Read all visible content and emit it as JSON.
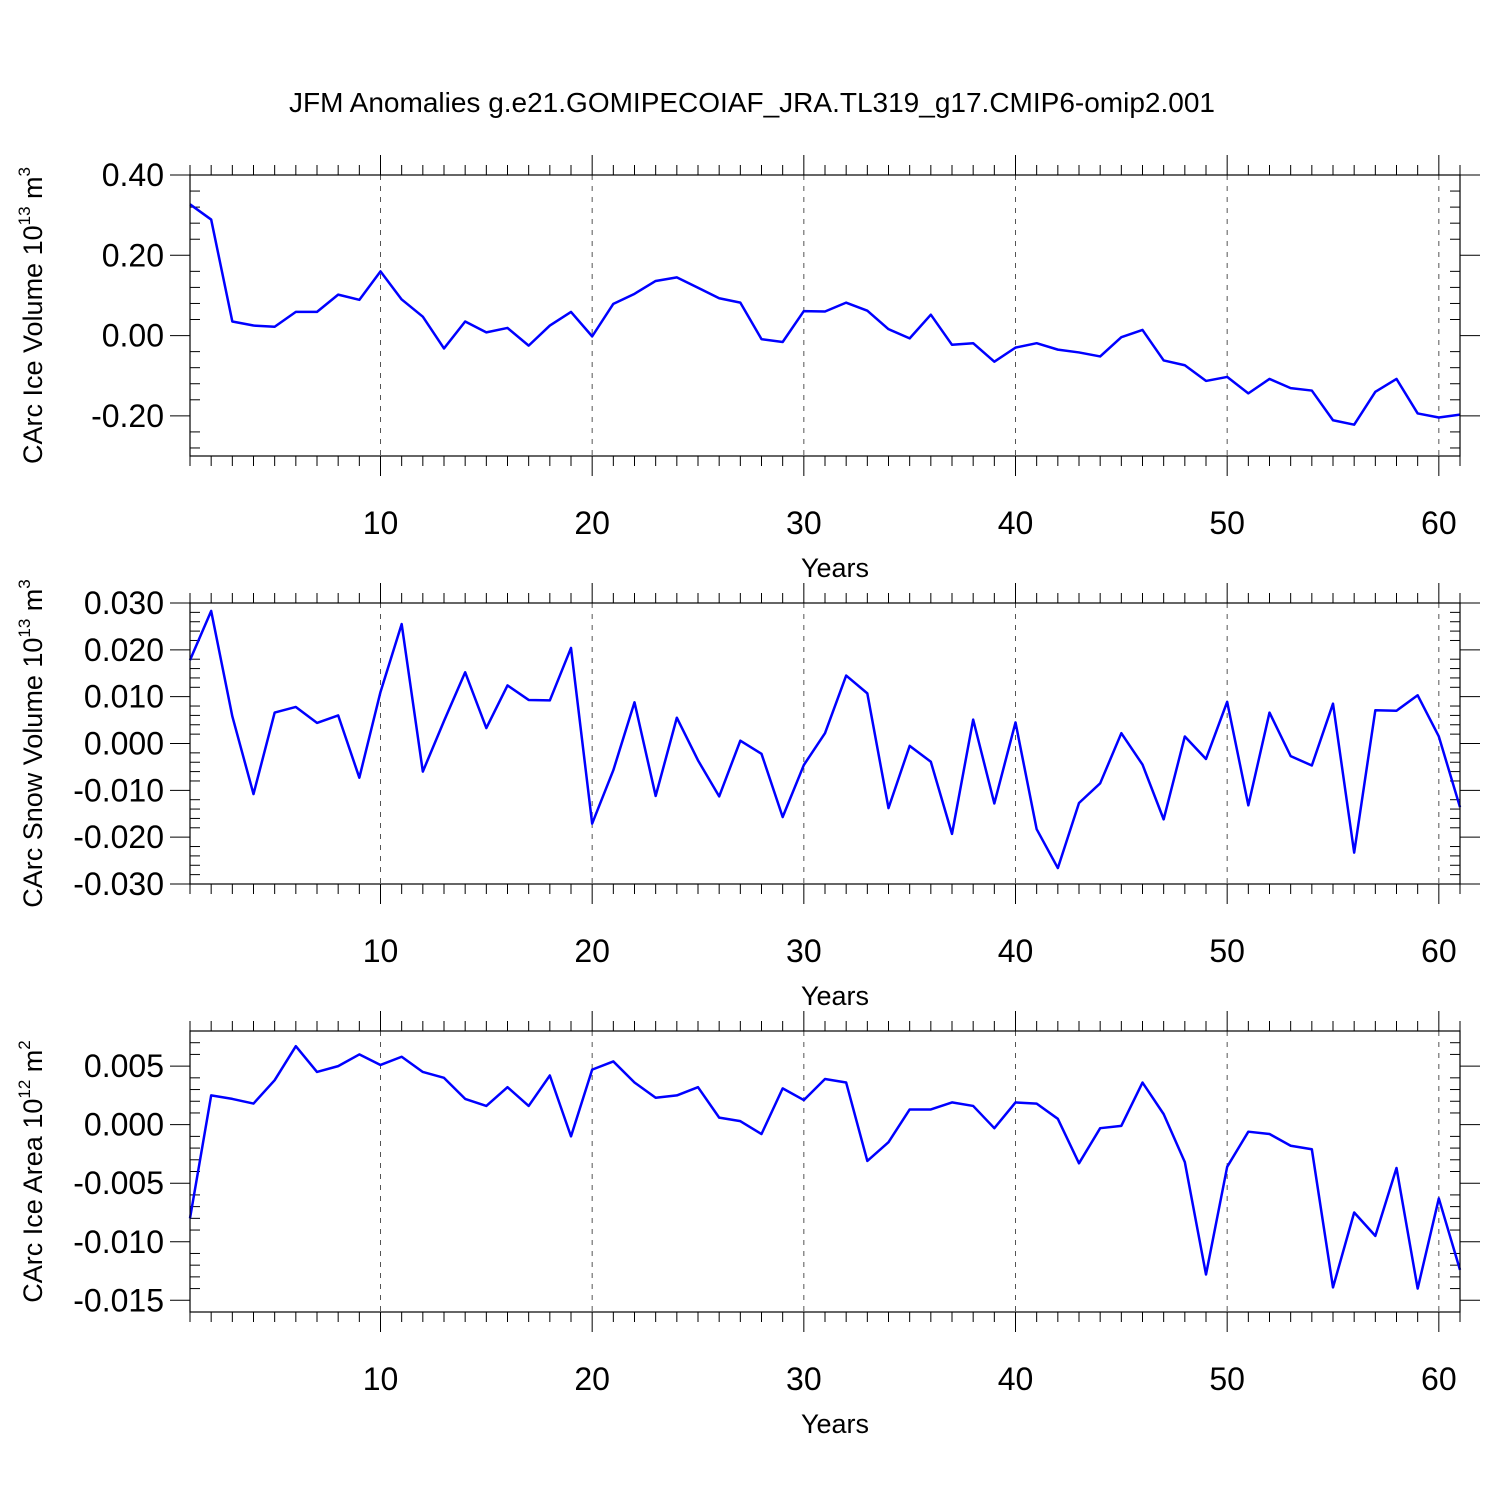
{
  "title": "JFM Anomalies g.e21.GOMIPECOIAF_JRA.TL319_g17.CMIP6-omip2.001",
  "colors": {
    "line": "#0000ff",
    "axis": "#000000",
    "grid": "#555555"
  },
  "chart_data": [
    {
      "type": "line",
      "xlabel": "Years",
      "ylabel_main": "CArc Ice Volume 10",
      "ylabel_exp": "13",
      "ylabel_tail": " m",
      "ylabel_unit_exp": "3",
      "xlim": [
        1,
        61
      ],
      "ylim": [
        -0.3,
        0.4
      ],
      "grid": "vertical dashed at x ticks",
      "x_ticks": [
        10,
        20,
        30,
        40,
        50,
        60
      ],
      "x_tick_labels": [
        "10",
        "20",
        "30",
        "40",
        "50",
        "60"
      ],
      "y_ticks": [
        0.4,
        0.2,
        0.0,
        -0.2
      ],
      "y_tick_labels": [
        "0.40",
        "0.20",
        "0.00",
        "-0.20"
      ],
      "x": [
        1,
        2,
        3,
        4,
        5,
        6,
        7,
        8,
        9,
        10,
        11,
        12,
        13,
        14,
        15,
        16,
        17,
        18,
        19,
        20,
        21,
        22,
        23,
        24,
        25,
        26,
        27,
        28,
        29,
        30,
        31,
        32,
        33,
        34,
        35,
        36,
        37,
        38,
        39,
        40,
        41,
        42,
        43,
        44,
        45,
        46,
        47,
        48,
        49,
        50,
        51,
        52,
        53,
        54,
        55,
        56,
        57,
        58,
        59,
        60,
        61
      ],
      "series": [
        {
          "values": [
            0.327,
            0.289,
            0.035,
            0.025,
            0.022,
            0.059,
            0.059,
            0.102,
            0.089,
            0.16,
            0.09,
            0.047,
            -0.032,
            0.035,
            0.008,
            0.019,
            -0.025,
            0.025,
            0.059,
            -0.002,
            0.079,
            0.104,
            0.136,
            0.145,
            0.119,
            0.093,
            0.082,
            -0.009,
            -0.016,
            0.061,
            0.06,
            0.082,
            0.062,
            0.016,
            -0.007,
            0.052,
            -0.023,
            -0.019,
            -0.065,
            -0.03,
            -0.019,
            -0.035,
            -0.042,
            -0.052,
            -0.004,
            0.014,
            -0.062,
            -0.074,
            -0.113,
            -0.103,
            -0.144,
            -0.108,
            -0.131,
            -0.137,
            -0.211,
            -0.222,
            -0.14,
            -0.108,
            -0.194,
            -0.204,
            -0.197
          ]
        }
      ]
    },
    {
      "type": "line",
      "xlabel": "Years",
      "ylabel_main": "CArc Snow Volume 10",
      "ylabel_exp": "13",
      "ylabel_tail": " m",
      "ylabel_unit_exp": "3",
      "xlim": [
        1,
        61
      ],
      "ylim": [
        -0.03,
        0.03
      ],
      "grid": "vertical dashed at x ticks",
      "x_ticks": [
        10,
        20,
        30,
        40,
        50,
        60
      ],
      "x_tick_labels": [
        "10",
        "20",
        "30",
        "40",
        "50",
        "60"
      ],
      "y_ticks": [
        0.03,
        0.02,
        0.01,
        0.0,
        -0.01,
        -0.02,
        -0.03
      ],
      "y_tick_labels": [
        "0.030",
        "0.020",
        "0.010",
        "0.000",
        "-0.010",
        "-0.020",
        "-0.030"
      ],
      "x": [
        1,
        2,
        3,
        4,
        5,
        6,
        7,
        8,
        9,
        10,
        11,
        12,
        13,
        14,
        15,
        16,
        17,
        18,
        19,
        20,
        21,
        22,
        23,
        24,
        25,
        26,
        27,
        28,
        29,
        30,
        31,
        32,
        33,
        34,
        35,
        36,
        37,
        38,
        39,
        40,
        41,
        42,
        43,
        44,
        45,
        46,
        47,
        48,
        49,
        50,
        51,
        52,
        53,
        54,
        55,
        56,
        57,
        58,
        59,
        60,
        61
      ],
      "series": [
        {
          "values": [
            0.0178,
            0.0283,
            0.0058,
            -0.0108,
            0.0066,
            0.0078,
            0.0044,
            0.006,
            -0.0073,
            0.011,
            0.0255,
            -0.006,
            0.0048,
            0.0152,
            0.0033,
            0.0124,
            0.0093,
            0.0092,
            0.0204,
            -0.0171,
            -0.0057,
            0.0088,
            -0.0112,
            0.0055,
            -0.0036,
            -0.0113,
            0.0006,
            -0.0022,
            -0.0157,
            -0.0046,
            0.0022,
            0.0145,
            0.0107,
            -0.0138,
            -0.0005,
            -0.0039,
            -0.0193,
            0.0051,
            -0.0128,
            0.0045,
            -0.0183,
            -0.0266,
            -0.0127,
            -0.0085,
            0.0022,
            -0.0045,
            -0.0162,
            0.0015,
            -0.0033,
            0.0089,
            -0.0132,
            0.0066,
            -0.0027,
            -0.0047,
            0.0085,
            -0.0233,
            0.0071,
            0.007,
            0.0103,
            0.0015,
            -0.0136
          ]
        }
      ]
    },
    {
      "type": "line",
      "xlabel": "Years",
      "ylabel_main": "CArc Ice Area 10",
      "ylabel_exp": "12",
      "ylabel_tail": " m",
      "ylabel_unit_exp": "2",
      "xlim": [
        1,
        61
      ],
      "ylim": [
        -0.016,
        0.008
      ],
      "grid": "vertical dashed at x ticks",
      "x_ticks": [
        10,
        20,
        30,
        40,
        50,
        60
      ],
      "x_tick_labels": [
        "10",
        "20",
        "30",
        "40",
        "50",
        "60"
      ],
      "y_ticks": [
        0.005,
        0.0,
        -0.005,
        -0.01,
        -0.015
      ],
      "y_tick_labels": [
        "0.005",
        "0.000",
        "-0.005",
        "-0.010",
        "-0.015"
      ],
      "x": [
        1,
        2,
        3,
        4,
        5,
        6,
        7,
        8,
        9,
        10,
        11,
        12,
        13,
        14,
        15,
        16,
        17,
        18,
        19,
        20,
        21,
        22,
        23,
        24,
        25,
        26,
        27,
        28,
        29,
        30,
        31,
        32,
        33,
        34,
        35,
        36,
        37,
        38,
        39,
        40,
        41,
        42,
        43,
        44,
        45,
        46,
        47,
        48,
        49,
        50,
        51,
        52,
        53,
        54,
        55,
        56,
        57,
        58,
        59,
        60,
        61
      ],
      "series": [
        {
          "values": [
            -0.008,
            0.0025,
            0.0022,
            0.0018,
            0.0038,
            0.0067,
            0.0045,
            0.005,
            0.006,
            0.0051,
            0.0058,
            0.0045,
            0.004,
            0.0022,
            0.0016,
            0.0032,
            0.0016,
            0.0042,
            -0.001,
            0.0047,
            0.0054,
            0.0036,
            0.0023,
            0.0025,
            0.0032,
            0.0006,
            0.0003,
            -0.0008,
            0.0031,
            0.0021,
            0.0039,
            0.0036,
            -0.0031,
            -0.0015,
            0.0013,
            0.0013,
            0.0019,
            0.0016,
            -0.0003,
            0.0019,
            0.0018,
            0.0005,
            -0.0033,
            -0.0003,
            -0.0001,
            0.0036,
            0.0009,
            -0.0032,
            -0.0128,
            -0.0036,
            -0.0006,
            -0.0008,
            -0.0018,
            -0.0021,
            -0.0139,
            -0.0075,
            -0.0095,
            -0.0037,
            -0.014,
            -0.0063,
            -0.0124
          ]
        }
      ]
    }
  ]
}
